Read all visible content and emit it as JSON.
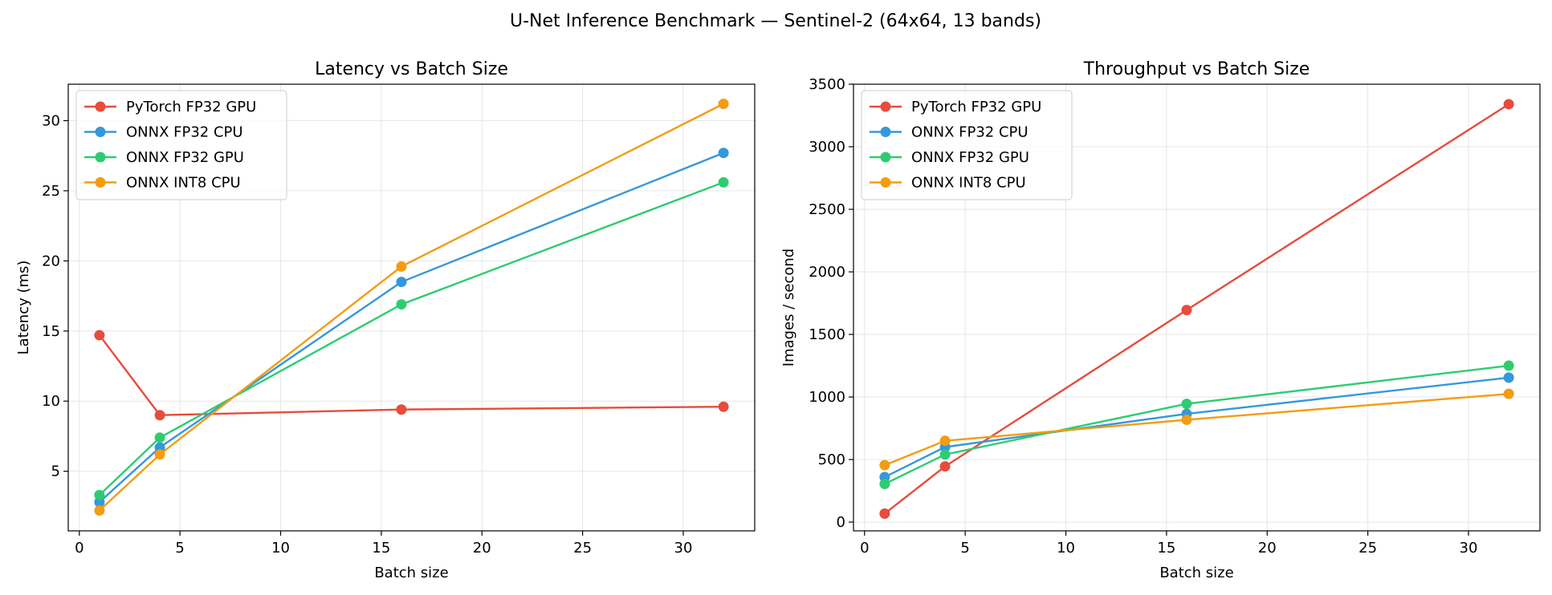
{
  "suptitle": "U-Net Inference Benchmark — Sentinel-2 (64x64, 13 bands)",
  "chart_data": [
    {
      "type": "line",
      "title": "Latency vs Batch Size",
      "xlabel": "Batch size",
      "ylabel": "Latency (ms)",
      "xlim": [
        -0.55,
        33.55
      ],
      "ylim": [
        0.75,
        32.6
      ],
      "xticks": [
        0,
        5,
        10,
        15,
        20,
        25,
        30
      ],
      "yticks": [
        5,
        10,
        15,
        20,
        25,
        30
      ],
      "grid": true,
      "legend_position": "top-left",
      "x": [
        1,
        4,
        16,
        32
      ],
      "series": [
        {
          "name": "PyTorch FP32 GPU",
          "color": "#e74c3c",
          "values": [
            14.7,
            9.0,
            9.4,
            9.6
          ]
        },
        {
          "name": "ONNX FP32 CPU",
          "color": "#3498db",
          "values": [
            2.8,
            6.7,
            18.5,
            27.7
          ]
        },
        {
          "name": "ONNX FP32 GPU",
          "color": "#2ecc71",
          "values": [
            3.3,
            7.4,
            16.9,
            25.6
          ]
        },
        {
          "name": "ONNX INT8 CPU",
          "color": "#f39c12",
          "values": [
            2.2,
            6.2,
            19.6,
            31.2
          ]
        }
      ]
    },
    {
      "type": "line",
      "title": "Throughput vs Batch Size",
      "xlabel": "Batch size",
      "ylabel": "Images / second",
      "xlim": [
        -0.55,
        33.55
      ],
      "ylim": [
        -70,
        3500
      ],
      "xticks": [
        0,
        5,
        10,
        15,
        20,
        25,
        30
      ],
      "yticks": [
        0,
        500,
        1000,
        1500,
        2000,
        2500,
        3000,
        3500
      ],
      "grid": true,
      "legend_position": "top-left",
      "x": [
        1,
        4,
        16,
        32
      ],
      "series": [
        {
          "name": "PyTorch FP32 GPU",
          "color": "#e74c3c",
          "values": [
            68,
            445,
            1695,
            3340
          ]
        },
        {
          "name": "ONNX FP32 CPU",
          "color": "#3498db",
          "values": [
            360,
            600,
            865,
            1155
          ]
        },
        {
          "name": "ONNX FP32 GPU",
          "color": "#2ecc71",
          "values": [
            305,
            540,
            945,
            1250
          ]
        },
        {
          "name": "ONNX INT8 CPU",
          "color": "#f39c12",
          "values": [
            455,
            650,
            818,
            1025
          ]
        }
      ]
    }
  ]
}
